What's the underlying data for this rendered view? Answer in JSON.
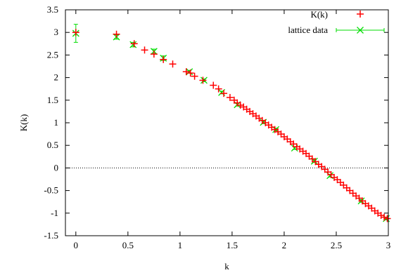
{
  "chart_data": {
    "type": "scatter",
    "title": "",
    "xlabel": "k",
    "ylabel": "K(k)",
    "xlim": [
      -0.1,
      3.0
    ],
    "ylim": [
      -1.5,
      3.5
    ],
    "xticks": [
      0,
      0.5,
      1,
      1.5,
      2,
      2.5,
      3
    ],
    "xtick_labels": [
      "0",
      "0.5",
      "1",
      "1.5",
      "2",
      "2.5",
      "3"
    ],
    "yticks": [
      -1.5,
      -1,
      -0.5,
      0,
      0.5,
      1,
      1.5,
      2,
      2.5,
      3,
      3.5
    ],
    "ytick_labels": [
      "-1.5",
      "-1",
      "-0.5",
      "0",
      "0.5",
      "1",
      "1.5",
      "2",
      "2.5",
      "3",
      "3.5"
    ],
    "grid": false,
    "zero_line": true,
    "legend_position": "top-right",
    "series": [
      {
        "name": "K(k)",
        "marker": "plus",
        "color": "#ff0000",
        "points": [
          [
            0.0,
            3.0
          ],
          [
            0.39,
            2.96
          ],
          [
            0.56,
            2.75
          ],
          [
            0.66,
            2.61
          ],
          [
            0.75,
            2.52
          ],
          [
            0.84,
            2.4
          ],
          [
            0.93,
            2.3
          ],
          [
            1.06,
            2.13
          ],
          [
            1.1,
            2.1
          ],
          [
            1.14,
            2.03
          ],
          [
            1.22,
            1.94
          ],
          [
            1.32,
            1.83
          ],
          [
            1.37,
            1.75
          ],
          [
            1.42,
            1.65
          ],
          [
            1.48,
            1.56
          ],
          [
            1.52,
            1.5
          ],
          [
            1.55,
            1.44
          ],
          [
            1.58,
            1.39
          ],
          [
            1.61,
            1.35
          ],
          [
            1.64,
            1.3
          ],
          [
            1.67,
            1.25
          ],
          [
            1.7,
            1.2
          ],
          [
            1.73,
            1.15
          ],
          [
            1.76,
            1.1
          ],
          [
            1.79,
            1.05
          ],
          [
            1.82,
            1.0
          ],
          [
            1.85,
            0.95
          ],
          [
            1.88,
            0.9
          ],
          [
            1.91,
            0.85
          ],
          [
            1.94,
            0.8
          ],
          [
            1.97,
            0.75
          ],
          [
            2.0,
            0.69
          ],
          [
            2.03,
            0.64
          ],
          [
            2.06,
            0.58
          ],
          [
            2.09,
            0.53
          ],
          [
            2.12,
            0.47
          ],
          [
            2.15,
            0.42
          ],
          [
            2.18,
            0.37
          ],
          [
            2.21,
            0.32
          ],
          [
            2.24,
            0.26
          ],
          [
            2.27,
            0.2
          ],
          [
            2.3,
            0.14
          ],
          [
            2.33,
            0.08
          ],
          [
            2.36,
            0.03
          ],
          [
            2.39,
            -0.03
          ],
          [
            2.42,
            -0.09
          ],
          [
            2.45,
            -0.15
          ],
          [
            2.48,
            -0.21
          ],
          [
            2.51,
            -0.26
          ],
          [
            2.54,
            -0.32
          ],
          [
            2.57,
            -0.38
          ],
          [
            2.6,
            -0.44
          ],
          [
            2.63,
            -0.5
          ],
          [
            2.66,
            -0.56
          ],
          [
            2.69,
            -0.62
          ],
          [
            2.72,
            -0.67
          ],
          [
            2.75,
            -0.73
          ],
          [
            2.78,
            -0.79
          ],
          [
            2.81,
            -0.84
          ],
          [
            2.84,
            -0.89
          ],
          [
            2.87,
            -0.95
          ],
          [
            2.9,
            -1.0
          ],
          [
            2.93,
            -1.05
          ],
          [
            2.96,
            -1.09
          ],
          [
            2.99,
            -1.12
          ]
        ]
      },
      {
        "name": "lattice data",
        "marker": "x",
        "color": "#00dd00",
        "points": [
          [
            0.0,
            2.98
          ],
          [
            0.39,
            2.9
          ],
          [
            0.55,
            2.73
          ],
          [
            0.75,
            2.58
          ],
          [
            0.84,
            2.43
          ],
          [
            1.09,
            2.13
          ],
          [
            1.23,
            1.94
          ],
          [
            1.4,
            1.67
          ],
          [
            1.55,
            1.4
          ],
          [
            1.8,
            1.01
          ],
          [
            1.92,
            0.85
          ],
          [
            2.1,
            0.44
          ],
          [
            2.29,
            0.15
          ],
          [
            2.44,
            -0.17
          ],
          [
            2.74,
            -0.73
          ],
          [
            2.98,
            -1.12
          ]
        ],
        "errors": [
          0.2,
          0.05,
          0.05,
          0.05,
          0.05,
          0.03,
          0.03,
          0.03,
          0.03,
          0.03,
          0.03,
          0.03,
          0.03,
          0.03,
          0.03,
          0.03
        ]
      }
    ]
  }
}
